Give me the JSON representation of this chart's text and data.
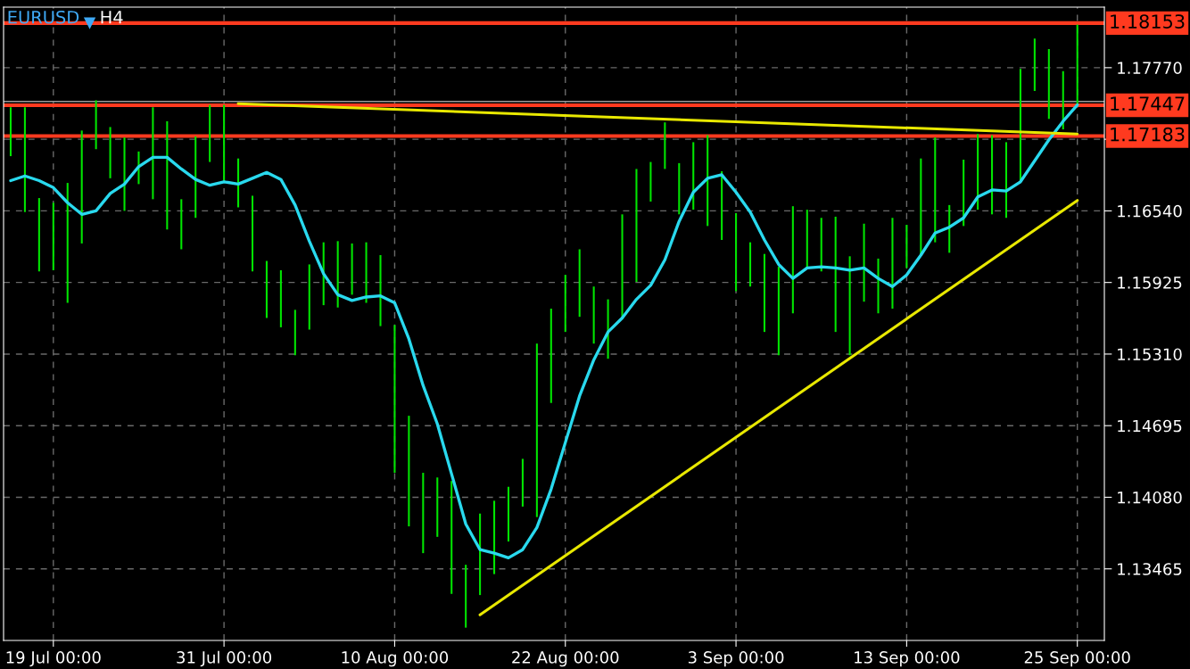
{
  "chart_data": {
    "type": "bar",
    "title": "EURUSD",
    "subtitle": "H4",
    "categories": [
      null,
      null,
      null,
      "19 Jul 00:00",
      null,
      null,
      null,
      null,
      null,
      null,
      null,
      null,
      null,
      null,
      null,
      "31 Jul 00:00",
      null,
      null,
      null,
      null,
      null,
      null,
      null,
      null,
      null,
      null,
      null,
      "10 Aug 00:00",
      null,
      null,
      null,
      null,
      null,
      null,
      null,
      null,
      null,
      null,
      null,
      "22 Aug 00:00",
      null,
      null,
      null,
      null,
      null,
      null,
      null,
      null,
      null,
      null,
      null,
      "3 Sep 00:00",
      null,
      null,
      null,
      null,
      null,
      null,
      null,
      null,
      null,
      null,
      null,
      "13 Sep 00:00",
      null,
      null,
      null,
      null,
      null,
      null,
      null,
      null,
      null,
      null,
      null,
      "25 Sep 00:00"
    ],
    "series": [
      {
        "color": "#00e600",
        "base": [
          1.1701,
          1.1653,
          1.1602,
          1.1603,
          1.1575,
          1.1626,
          1.1707,
          1.1682,
          1.1654,
          1.1677,
          1.1664,
          1.1638,
          1.1621,
          1.1648,
          1.1696,
          1.168,
          1.1657,
          1.1602,
          1.1562,
          1.1554,
          1.153,
          1.1552,
          1.1573,
          1.1571,
          1.1582,
          1.1575,
          1.1555,
          1.1429,
          1.1383,
          1.136,
          1.1374,
          1.1325,
          1.1296,
          1.1324,
          1.1342,
          1.137,
          1.14,
          1.1391,
          1.1489,
          1.155,
          1.1563,
          1.154,
          1.1527,
          1.1561,
          1.1593,
          1.1662,
          1.169,
          1.1651,
          1.1655,
          1.1641,
          1.1629,
          1.1585,
          1.1589,
          1.155,
          1.153,
          1.1566,
          1.1605,
          1.1602,
          1.155,
          1.153,
          1.1576,
          1.1566,
          1.157,
          1.1605,
          1.1616,
          1.1627,
          1.1618,
          1.1641,
          1.1655,
          1.1651,
          1.1648,
          1.1678,
          1.1757,
          1.1733,
          1.1724,
          1.1746
        ],
        "values": [
          0.0042,
          0.009,
          0.0063,
          0.0058,
          0.0103,
          0.0097,
          0.0042,
          0.0044,
          0.0063,
          0.0028,
          0.0079,
          0.0093,
          0.0043,
          0.007,
          0.0049,
          0.0065,
          0.0042,
          0.0065,
          0.0049,
          0.0049,
          0.0039,
          0.0056,
          0.0054,
          0.0057,
          0.0044,
          0.0052,
          0.0061,
          0.0127,
          0.0095,
          0.0069,
          0.0051,
          0.0097,
          0.0054,
          0.007,
          0.0063,
          0.0047,
          0.0041,
          0.0149,
          0.0081,
          0.0049,
          0.0058,
          0.0049,
          0.0051,
          0.009,
          0.0097,
          0.0034,
          0.004,
          0.0044,
          0.0058,
          0.0078,
          0.0059,
          0.0067,
          0.0038,
          0.0067,
          0.0076,
          0.0092,
          0.005,
          0.0046,
          0.0099,
          0.0085,
          0.0067,
          0.0047,
          0.0078,
          0.0037,
          0.0083,
          0.009,
          0.0041,
          0.0057,
          0.0065,
          0.0068,
          0.0065,
          0.0098,
          0.0045,
          0.006,
          0.005,
          0.0068
        ]
      },
      {
        "type": "line",
        "color": "#29d9ee",
        "values": [
          1.168,
          1.1684,
          1.168,
          1.1674,
          1.1661,
          1.1651,
          1.1654,
          1.1669,
          1.1677,
          1.1692,
          1.17,
          1.17,
          1.169,
          1.1681,
          1.1676,
          1.1679,
          1.1677,
          1.1682,
          1.1687,
          1.1681,
          1.1659,
          1.1628,
          1.16,
          1.1582,
          1.1577,
          1.158,
          1.1581,
          1.1575,
          1.1544,
          1.1504,
          1.1471,
          1.1428,
          1.1385,
          1.1363,
          1.136,
          1.1356,
          1.1363,
          1.1382,
          1.1415,
          1.1455,
          1.1495,
          1.1526,
          1.155,
          1.1562,
          1.1578,
          1.159,
          1.1612,
          1.1645,
          1.167,
          1.1682,
          1.1685,
          1.167,
          1.1653,
          1.1629,
          1.1608,
          1.1596,
          1.1605,
          1.1606,
          1.1605,
          1.1603,
          1.1605,
          1.1596,
          1.1589,
          1.1599,
          1.1616,
          1.1635,
          1.164,
          1.1648,
          1.1666,
          1.1672,
          1.1671,
          1.1679,
          1.1697,
          1.1715,
          1.1731,
          1.1745
        ]
      },
      {
        "type": "line",
        "color": "#e8e800",
        "values": [
          null,
          null,
          null,
          null,
          null,
          null,
          null,
          null,
          null,
          null,
          null,
          null,
          null,
          null,
          null,
          null,
          1.1746,
          null,
          null,
          null,
          null,
          null,
          null,
          null,
          null,
          null,
          null,
          null,
          null,
          null,
          null,
          null,
          null,
          null,
          null,
          null,
          null,
          null,
          null,
          null,
          null,
          null,
          null,
          null,
          null,
          null,
          null,
          null,
          null,
          null,
          null,
          null,
          null,
          null,
          null,
          null,
          null,
          null,
          null,
          null,
          null,
          null,
          null,
          null,
          null,
          null,
          null,
          null,
          null,
          null,
          null,
          null,
          null,
          null,
          null,
          1.172
        ]
      },
      {
        "type": "line",
        "color": "#e8e800",
        "values": [
          null,
          null,
          null,
          null,
          null,
          null,
          null,
          null,
          null,
          null,
          null,
          null,
          null,
          null,
          null,
          null,
          null,
          null,
          null,
          null,
          null,
          null,
          null,
          null,
          null,
          null,
          null,
          null,
          null,
          null,
          null,
          null,
          null,
          1.1307,
          null,
          null,
          null,
          null,
          null,
          null,
          null,
          null,
          null,
          null,
          null,
          null,
          null,
          null,
          null,
          null,
          null,
          null,
          null,
          null,
          null,
          null,
          null,
          null,
          null,
          null,
          null,
          null,
          null,
          null,
          null,
          null,
          null,
          null,
          null,
          null,
          null,
          null,
          null,
          null,
          null,
          1.1663
        ]
      }
    ],
    "ylim": [
      1.1285,
      1.1829
    ],
    "yticks": [
      1.13465,
      {
        "value": 1.1408,
        "label": "1.14080"
      },
      1.14695,
      {
        "value": 1.1531,
        "label": "1.15310"
      },
      1.15925,
      {
        "value": 1.1654,
        "label": "1.16540"
      },
      {
        "value": 1.17155,
        "label": null
      },
      {
        "value": 1.1777,
        "label": "1.17770"
      }
    ],
    "ref_lines": [
      {
        "axis": "y",
        "value": 1.1748,
        "color": "#9a9a9a"
      },
      {
        "axis": "y",
        "value": 1.18153,
        "label": "1.18153",
        "color": "#ff3a1f"
      },
      {
        "axis": "y",
        "value": 1.17447,
        "label": "1.17447",
        "color": "#ff3a1f"
      },
      {
        "axis": "y",
        "value": 1.17183,
        "label": "1.17183",
        "color": "#ff3a1f"
      }
    ],
    "grid": true,
    "legend": false
  }
}
